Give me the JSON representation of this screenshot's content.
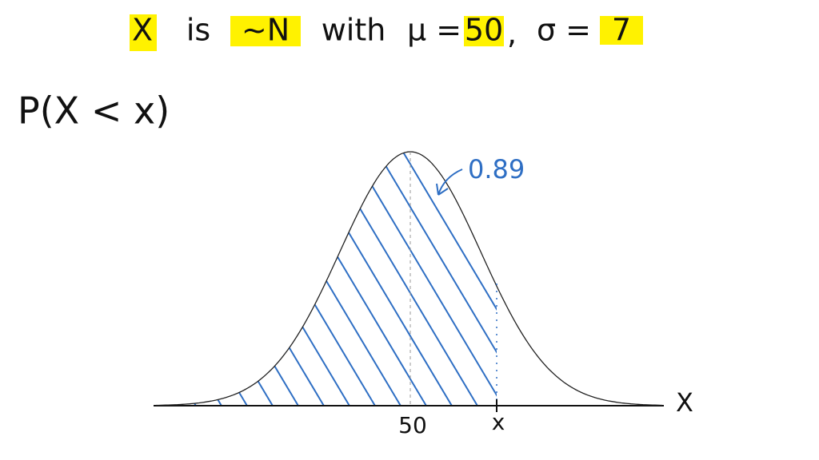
{
  "title": {
    "variable": "X",
    "is": "is",
    "distribution": "~N",
    "with": "with",
    "mu_label": "μ =",
    "mu": "50",
    "separator": ",",
    "sigma_label": "σ =",
    "sigma": "7"
  },
  "expression": "P(X < x)",
  "diagram": {
    "area_label": "0.89",
    "mean_label": "50",
    "x_label": "x",
    "axis_label": "X"
  }
}
